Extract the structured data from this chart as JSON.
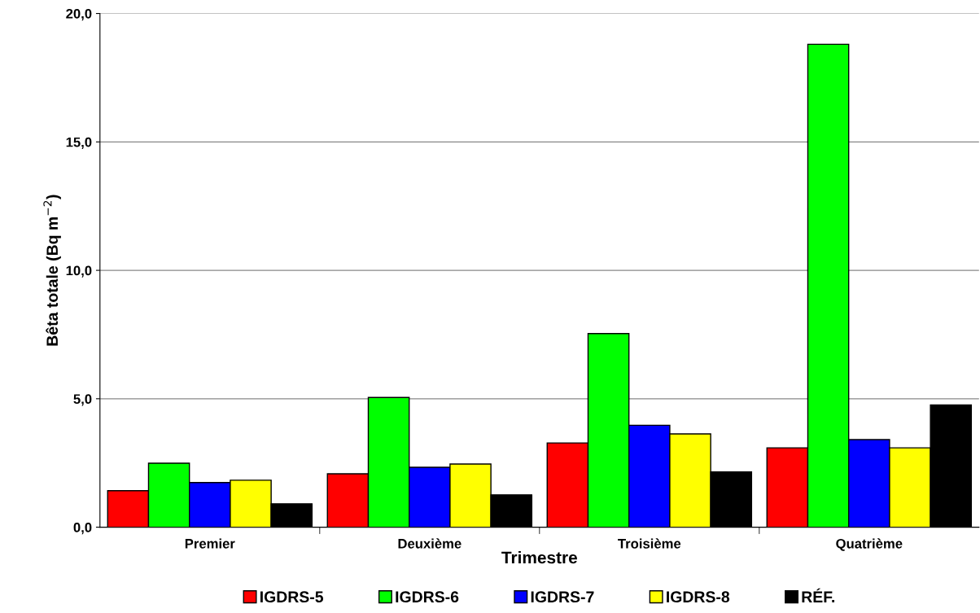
{
  "chart_data": {
    "type": "bar",
    "xlabel": "Trimestre",
    "ylabel": "Bêta totale (Bq m$^{−2}$)",
    "categories": [
      "Premier",
      "Deuxième",
      "Troisième",
      "Quatrième"
    ],
    "series": [
      {
        "name": "IGDRS-5",
        "color": "#ff0000",
        "values": [
          1.42,
          2.08,
          3.28,
          3.09
        ]
      },
      {
        "name": "IGDRS-6",
        "color": "#00ff00",
        "values": [
          2.49,
          5.05,
          7.54,
          18.8
        ]
      },
      {
        "name": "IGDRS-7",
        "color": "#0000ff",
        "values": [
          1.74,
          2.33,
          3.97,
          3.41
        ]
      },
      {
        "name": "IGDRS-8",
        "color": "#ffff00",
        "values": [
          1.83,
          2.46,
          3.63,
          3.09
        ]
      },
      {
        "name": "RÉF.",
        "color": "#000000",
        "values": [
          0.91,
          1.26,
          2.15,
          4.76
        ]
      }
    ],
    "ylim": [
      0,
      20
    ],
    "yticks": [
      {
        "value": 0,
        "label": "0,0"
      },
      {
        "value": 5,
        "label": "5,0"
      },
      {
        "value": 10,
        "label": "10,0"
      },
      {
        "value": 15,
        "label": "15,0"
      },
      {
        "value": 20,
        "label": "20,0"
      }
    ],
    "grid": "y",
    "legend": "bottom"
  }
}
